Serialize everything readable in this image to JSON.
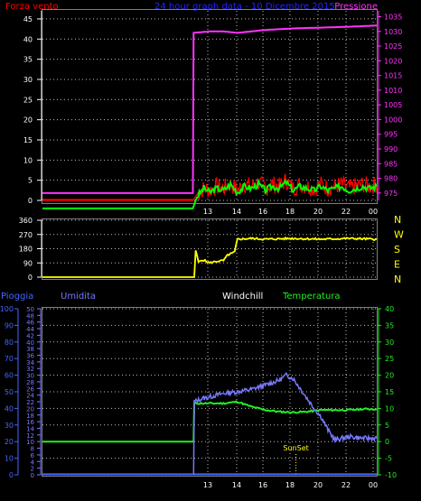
{
  "colors": {
    "wind": "#ff0000",
    "gust": "#00ff00",
    "pressure": "#ff33ff",
    "title": "#2222ff",
    "direction": "#ffff00",
    "rain": "#4466ff",
    "humidity": "#7777ff",
    "windchill": "#ffffff",
    "temperature": "#22ee22",
    "axis": "#ffffff",
    "grid": "#c0c0c0",
    "frame": "#7f7f7f",
    "sunset": "#ffff00"
  },
  "chart_data": [
    {
      "type": "line",
      "title": "24 hour graph data - 10 Dicembre 2015",
      "ylabel_left": "Forza vento",
      "ylabel_right": "Pressione",
      "x_ticks": [
        "13",
        "14",
        "16",
        "18",
        "20",
        "22",
        "00"
      ],
      "y_left_ticks": [
        0,
        5,
        10,
        15,
        20,
        25,
        30,
        35,
        40,
        45
      ],
      "y_left_range": [
        0,
        47
      ],
      "y_right_ticks": [
        975,
        980,
        985,
        990,
        995,
        1000,
        1005,
        1010,
        1015,
        1020,
        1025,
        1030,
        1035
      ],
      "y_right_range": [
        972.5,
        1037
      ],
      "series": [
        {
          "name": "Forza vento",
          "axis": "left",
          "x": [
            0,
            10.8,
            11.1,
            11.6,
            12,
            12.5,
            13,
            13.5,
            14,
            14.5,
            15,
            15.5,
            16,
            16.5,
            17,
            17.5,
            18,
            18.5,
            19,
            19.5,
            20,
            20.5,
            21,
            21.5,
            22,
            22.5,
            23,
            23.5,
            24
          ],
          "values": [
            0,
            0,
            1.5,
            3,
            2.5,
            3.5,
            3,
            4,
            2.5,
            4,
            3.5,
            4.5,
            3,
            4,
            3.5,
            5,
            3,
            4,
            3.5,
            3,
            4,
            3,
            3.5,
            4,
            3,
            3.5,
            4,
            3.5,
            4
          ]
        },
        {
          "name": "Raffica",
          "axis": "left",
          "x": [
            0,
            10.8,
            11.1,
            11.6,
            12,
            12.5,
            13,
            13.5,
            14,
            14.5,
            15,
            15.5,
            16,
            16.5,
            17,
            17.5,
            18,
            18.5,
            19,
            19.5,
            20,
            20.5,
            21,
            21.5,
            22,
            22.5,
            23,
            23.5,
            24
          ],
          "values": [
            0,
            0,
            3,
            5,
            4,
            5,
            4.5,
            6,
            4,
            5.5,
            5,
            6,
            4.5,
            5.5,
            5,
            6.5,
            4.5,
            5.5,
            5,
            4.5,
            5.5,
            4.5,
            5,
            5.5,
            4.5,
            5,
            5.5,
            5,
            5.5
          ]
        },
        {
          "name": "Pressione",
          "axis": "right",
          "x": [
            0,
            10.8,
            10.85,
            12,
            13,
            14,
            15,
            16,
            18,
            20,
            22,
            24
          ],
          "values": [
            975,
            975,
            1029.5,
            1030,
            1030,
            1029.5,
            1030,
            1030.5,
            1031,
            1031.3,
            1031.6,
            1032
          ]
        }
      ]
    },
    {
      "type": "line",
      "ylabel_right": [
        "N",
        "W",
        "S",
        "E",
        "N"
      ],
      "x_ticks": [
        "13",
        "14",
        "16",
        "18",
        "20",
        "22",
        "00"
      ],
      "y_ticks": [
        0,
        90,
        180,
        270,
        360
      ],
      "y_range": [
        0,
        360
      ],
      "series": [
        {
          "name": "Direzione vento",
          "x": [
            0,
            10.9,
            11.0,
            11.2,
            11.5,
            12,
            12.5,
            13,
            13.3,
            13.6,
            13.8,
            14.0,
            15,
            16,
            18,
            20,
            22,
            24
          ],
          "values": [
            0,
            0,
            170,
            95,
            110,
            90,
            100,
            105,
            140,
            150,
            160,
            240,
            245,
            240,
            245,
            240,
            245,
            240
          ]
        }
      ]
    },
    {
      "type": "line",
      "labels": {
        "rain": "Pioggia",
        "humidity": "Umidita",
        "windchill": "Windchill",
        "temperature": "Temperatura"
      },
      "annotation": "SunSet",
      "annotation_x": 18.2,
      "x_ticks": [
        "13",
        "14",
        "16",
        "18",
        "20",
        "22",
        "00"
      ],
      "y_rain_ticks": [
        0,
        10,
        20,
        30,
        40,
        50,
        60,
        70,
        80,
        90,
        100
      ],
      "y_rain_range": [
        0,
        100
      ],
      "y_humidity_ticks": [
        0,
        2,
        4,
        6,
        8,
        10,
        12,
        14,
        16,
        18,
        20,
        22,
        24,
        26,
        28,
        30,
        32,
        34,
        36,
        38,
        40,
        42,
        44,
        46,
        48,
        50
      ],
      "y_humidity_range": [
        0,
        50
      ],
      "y_temp_ticks": [
        -10,
        -5,
        0,
        5,
        10,
        15,
        20,
        25,
        30,
        35,
        40
      ],
      "y_temp_range": [
        -10,
        40
      ],
      "series": [
        {
          "name": "Pioggia",
          "axis": "rain",
          "x": [
            0,
            24
          ],
          "values": [
            0.3,
            0.3
          ]
        },
        {
          "name": "Umidita",
          "axis": "humidity",
          "x": [
            10.85,
            10.9,
            11.5,
            12,
            13,
            14,
            15,
            16,
            17,
            17.5,
            18,
            18.5,
            19,
            19.5,
            20,
            20.5,
            21,
            22,
            23,
            24
          ],
          "values": [
            0,
            22,
            23,
            23.5,
            24.5,
            25,
            25.7,
            27,
            28.5,
            30,
            29,
            26,
            23,
            20,
            17.5,
            13.5,
            10.5,
            11.5,
            11,
            11
          ]
        },
        {
          "name": "Temperatura",
          "axis": "temp",
          "x": [
            0,
            10.85,
            10.9,
            12,
            13,
            14,
            15,
            16,
            17,
            18,
            19,
            20,
            21,
            22,
            23,
            24
          ],
          "values": [
            0,
            0,
            11.5,
            11.5,
            11.5,
            12,
            10.5,
            9.5,
            9,
            8.8,
            9,
            9.5,
            9.5,
            9.5,
            9.8,
            9.8
          ]
        }
      ]
    }
  ]
}
